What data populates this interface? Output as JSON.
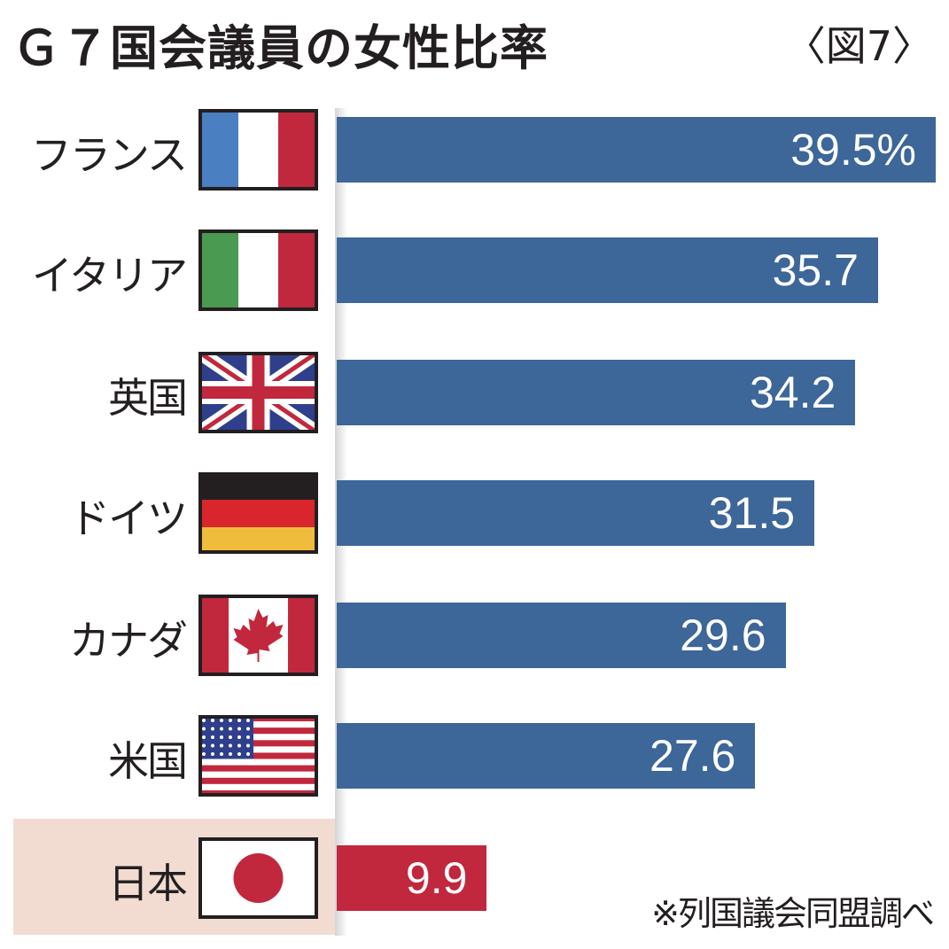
{
  "chart_data": {
    "type": "bar",
    "orientation": "horizontal",
    "title": "Ｇ７国会議員の女性比率",
    "figure_label": "〈図7〉",
    "unit_suffix": "%",
    "categories": [
      "フランス",
      "イタリア",
      "英国",
      "ドイツ",
      "カナダ",
      "米国",
      "日本"
    ],
    "flags": [
      "france-flag-icon",
      "italy-flag-icon",
      "uk-flag-icon",
      "germany-flag-icon",
      "canada-flag-icon",
      "usa-flag-icon",
      "japan-flag-icon"
    ],
    "values": [
      39.5,
      35.7,
      34.2,
      31.5,
      29.6,
      27.6,
      9.9
    ],
    "value_labels": [
      "39.5%",
      "35.7",
      "34.2",
      "31.5",
      "29.6",
      "27.6",
      "9.9"
    ],
    "highlight": "日本",
    "colors": {
      "bar": "#3d6699",
      "highlight_bar": "#c1283d",
      "highlight_bg": "#f2dcd2"
    },
    "source_note": "※列国議会同盟調べ",
    "grid": false
  }
}
